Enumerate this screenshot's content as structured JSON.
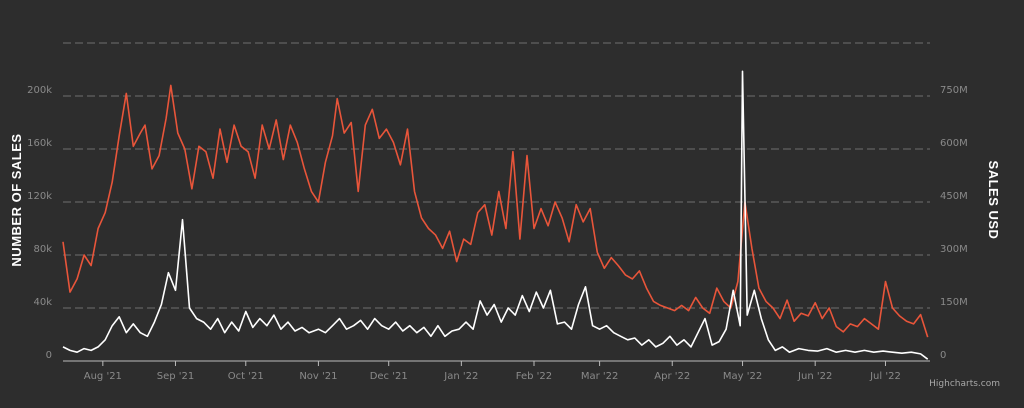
{
  "chart_data": {
    "type": "line",
    "x_start": "2021-07-15",
    "x_end": "2022-07-20",
    "x_tick_labels": [
      {
        "label": "Aug '21",
        "date": "2021-08-01"
      },
      {
        "label": "Sep '21",
        "date": "2021-09-01"
      },
      {
        "label": "Oct '21",
        "date": "2021-10-01"
      },
      {
        "label": "Nov '21",
        "date": "2021-11-01"
      },
      {
        "label": "Dec '21",
        "date": "2021-12-01"
      },
      {
        "label": "Jan '22",
        "date": "2022-01-01"
      },
      {
        "label": "Feb '22",
        "date": "2022-02-01"
      },
      {
        "label": "Mar '22",
        "date": "2022-03-01"
      },
      {
        "label": "Apr '22",
        "date": "2022-04-01"
      },
      {
        "label": "May '22",
        "date": "2022-05-01"
      },
      {
        "label": "Jun '22",
        "date": "2022-06-01"
      },
      {
        "label": "Jul '22",
        "date": "2022-07-01"
      }
    ],
    "y_left": {
      "title": "NUMBER OF SALES",
      "range": [
        0,
        240000
      ],
      "ticks": [
        0,
        40000,
        80000,
        120000,
        160000,
        200000
      ],
      "tick_labels": [
        "0",
        "40k",
        "80k",
        "120k",
        "160k",
        "200k"
      ]
    },
    "y_right": {
      "title": "SALES USD",
      "range": [
        0,
        900000000
      ],
      "ticks": [
        0,
        150000000,
        300000000,
        450000000,
        600000000,
        750000000
      ],
      "tick_labels": [
        "0",
        "150M",
        "300M",
        "450M",
        "600M",
        "750M"
      ]
    },
    "grid": true,
    "legend": "none",
    "credit": "Highcharts.com",
    "series": [
      {
        "axis": "left",
        "color": "#e8553a",
        "points": [
          [
            "2021-07-15",
            90000
          ],
          [
            "2021-07-18",
            52000
          ],
          [
            "2021-07-21",
            62000
          ],
          [
            "2021-07-24",
            80000
          ],
          [
            "2021-07-27",
            72000
          ],
          [
            "2021-07-30",
            100000
          ],
          [
            "2021-08-02",
            112000
          ],
          [
            "2021-08-05",
            135000
          ],
          [
            "2021-08-08",
            170000
          ],
          [
            "2021-08-11",
            202000
          ],
          [
            "2021-08-14",
            162000
          ],
          [
            "2021-08-17",
            172000
          ],
          [
            "2021-08-19",
            178000
          ],
          [
            "2021-08-22",
            145000
          ],
          [
            "2021-08-25",
            155000
          ],
          [
            "2021-08-28",
            183000
          ],
          [
            "2021-08-30",
            208000
          ],
          [
            "2021-09-02",
            172000
          ],
          [
            "2021-09-05",
            160000
          ],
          [
            "2021-09-08",
            130000
          ],
          [
            "2021-09-11",
            162000
          ],
          [
            "2021-09-14",
            158000
          ],
          [
            "2021-09-17",
            138000
          ],
          [
            "2021-09-20",
            175000
          ],
          [
            "2021-09-23",
            150000
          ],
          [
            "2021-09-26",
            178000
          ],
          [
            "2021-09-29",
            162000
          ],
          [
            "2021-10-02",
            158000
          ],
          [
            "2021-10-05",
            138000
          ],
          [
            "2021-10-08",
            178000
          ],
          [
            "2021-10-11",
            160000
          ],
          [
            "2021-10-14",
            182000
          ],
          [
            "2021-10-17",
            152000
          ],
          [
            "2021-10-20",
            178000
          ],
          [
            "2021-10-23",
            165000
          ],
          [
            "2021-10-26",
            145000
          ],
          [
            "2021-10-29",
            128000
          ],
          [
            "2021-11-01",
            120000
          ],
          [
            "2021-11-04",
            150000
          ],
          [
            "2021-11-07",
            170000
          ],
          [
            "2021-11-09",
            198000
          ],
          [
            "2021-11-12",
            172000
          ],
          [
            "2021-11-15",
            180000
          ],
          [
            "2021-11-18",
            128000
          ],
          [
            "2021-11-21",
            178000
          ],
          [
            "2021-11-24",
            190000
          ],
          [
            "2021-11-27",
            168000
          ],
          [
            "2021-11-30",
            175000
          ],
          [
            "2021-12-03",
            165000
          ],
          [
            "2021-12-06",
            148000
          ],
          [
            "2021-12-09",
            175000
          ],
          [
            "2021-12-12",
            128000
          ],
          [
            "2021-12-15",
            108000
          ],
          [
            "2021-12-18",
            100000
          ],
          [
            "2021-12-21",
            95000
          ],
          [
            "2021-12-24",
            85000
          ],
          [
            "2021-12-27",
            98000
          ],
          [
            "2021-12-30",
            75000
          ],
          [
            "2022-01-02",
            92000
          ],
          [
            "2022-01-05",
            88000
          ],
          [
            "2022-01-08",
            112000
          ],
          [
            "2022-01-11",
            118000
          ],
          [
            "2022-01-14",
            95000
          ],
          [
            "2022-01-17",
            128000
          ],
          [
            "2022-01-20",
            100000
          ],
          [
            "2022-01-23",
            158000
          ],
          [
            "2022-01-26",
            92000
          ],
          [
            "2022-01-29",
            155000
          ],
          [
            "2022-02-01",
            100000
          ],
          [
            "2022-02-04",
            115000
          ],
          [
            "2022-02-07",
            102000
          ],
          [
            "2022-02-10",
            120000
          ],
          [
            "2022-02-13",
            108000
          ],
          [
            "2022-02-16",
            90000
          ],
          [
            "2022-02-19",
            118000
          ],
          [
            "2022-02-22",
            105000
          ],
          [
            "2022-02-25",
            115000
          ],
          [
            "2022-02-28",
            82000
          ],
          [
            "2022-03-03",
            70000
          ],
          [
            "2022-03-06",
            78000
          ],
          [
            "2022-03-09",
            72000
          ],
          [
            "2022-03-12",
            65000
          ],
          [
            "2022-03-15",
            62000
          ],
          [
            "2022-03-18",
            68000
          ],
          [
            "2022-03-21",
            55000
          ],
          [
            "2022-03-24",
            45000
          ],
          [
            "2022-03-27",
            42000
          ],
          [
            "2022-03-30",
            40000
          ],
          [
            "2022-04-02",
            38000
          ],
          [
            "2022-04-05",
            42000
          ],
          [
            "2022-04-08",
            38000
          ],
          [
            "2022-04-11",
            48000
          ],
          [
            "2022-04-14",
            40000
          ],
          [
            "2022-04-17",
            36000
          ],
          [
            "2022-04-20",
            55000
          ],
          [
            "2022-04-23",
            45000
          ],
          [
            "2022-04-26",
            40000
          ],
          [
            "2022-04-29",
            60000
          ],
          [
            "2022-05-02",
            120000
          ],
          [
            "2022-05-05",
            85000
          ],
          [
            "2022-05-08",
            55000
          ],
          [
            "2022-05-11",
            45000
          ],
          [
            "2022-05-14",
            40000
          ],
          [
            "2022-05-17",
            32000
          ],
          [
            "2022-05-20",
            46000
          ],
          [
            "2022-05-23",
            30000
          ],
          [
            "2022-05-26",
            36000
          ],
          [
            "2022-05-29",
            34000
          ],
          [
            "2022-06-01",
            44000
          ],
          [
            "2022-06-04",
            32000
          ],
          [
            "2022-06-07",
            40000
          ],
          [
            "2022-06-10",
            26000
          ],
          [
            "2022-06-13",
            22000
          ],
          [
            "2022-06-16",
            28000
          ],
          [
            "2022-06-19",
            26000
          ],
          [
            "2022-06-22",
            32000
          ],
          [
            "2022-06-25",
            28000
          ],
          [
            "2022-06-28",
            24000
          ],
          [
            "2022-07-01",
            60000
          ],
          [
            "2022-07-04",
            40000
          ],
          [
            "2022-07-07",
            34000
          ],
          [
            "2022-07-10",
            30000
          ],
          [
            "2022-07-13",
            28000
          ],
          [
            "2022-07-16",
            35000
          ],
          [
            "2022-07-19",
            18000
          ]
        ]
      },
      {
        "axis": "right",
        "color": "#ffffff",
        "points": [
          [
            "2021-07-15",
            40000000
          ],
          [
            "2021-07-18",
            30000000
          ],
          [
            "2021-07-21",
            25000000
          ],
          [
            "2021-07-24",
            35000000
          ],
          [
            "2021-07-27",
            30000000
          ],
          [
            "2021-07-30",
            40000000
          ],
          [
            "2021-08-02",
            60000000
          ],
          [
            "2021-08-05",
            100000000
          ],
          [
            "2021-08-08",
            125000000
          ],
          [
            "2021-08-11",
            80000000
          ],
          [
            "2021-08-14",
            105000000
          ],
          [
            "2021-08-17",
            80000000
          ],
          [
            "2021-08-20",
            70000000
          ],
          [
            "2021-08-23",
            110000000
          ],
          [
            "2021-08-26",
            160000000
          ],
          [
            "2021-08-29",
            250000000
          ],
          [
            "2021-09-01",
            200000000
          ],
          [
            "2021-09-04",
            400000000
          ],
          [
            "2021-09-07",
            150000000
          ],
          [
            "2021-09-10",
            120000000
          ],
          [
            "2021-09-13",
            110000000
          ],
          [
            "2021-09-16",
            90000000
          ],
          [
            "2021-09-19",
            120000000
          ],
          [
            "2021-09-22",
            80000000
          ],
          [
            "2021-09-25",
            110000000
          ],
          [
            "2021-09-28",
            85000000
          ],
          [
            "2021-10-01",
            140000000
          ],
          [
            "2021-10-04",
            95000000
          ],
          [
            "2021-10-07",
            120000000
          ],
          [
            "2021-10-10",
            100000000
          ],
          [
            "2021-10-13",
            130000000
          ],
          [
            "2021-10-16",
            90000000
          ],
          [
            "2021-10-19",
            110000000
          ],
          [
            "2021-10-22",
            85000000
          ],
          [
            "2021-10-25",
            95000000
          ],
          [
            "2021-10-28",
            80000000
          ],
          [
            "2021-11-01",
            90000000
          ],
          [
            "2021-11-04",
            80000000
          ],
          [
            "2021-11-07",
            100000000
          ],
          [
            "2021-11-10",
            120000000
          ],
          [
            "2021-11-13",
            90000000
          ],
          [
            "2021-11-16",
            100000000
          ],
          [
            "2021-11-19",
            115000000
          ],
          [
            "2021-11-22",
            90000000
          ],
          [
            "2021-11-25",
            120000000
          ],
          [
            "2021-11-28",
            100000000
          ],
          [
            "2021-12-01",
            90000000
          ],
          [
            "2021-12-04",
            110000000
          ],
          [
            "2021-12-07",
            85000000
          ],
          [
            "2021-12-10",
            100000000
          ],
          [
            "2021-12-13",
            80000000
          ],
          [
            "2021-12-16",
            95000000
          ],
          [
            "2021-12-19",
            70000000
          ],
          [
            "2021-12-22",
            100000000
          ],
          [
            "2021-12-25",
            70000000
          ],
          [
            "2021-12-28",
            85000000
          ],
          [
            "2021-12-31",
            90000000
          ],
          [
            "2022-01-03",
            110000000
          ],
          [
            "2022-01-06",
            90000000
          ],
          [
            "2022-01-09",
            170000000
          ],
          [
            "2022-01-12",
            130000000
          ],
          [
            "2022-01-15",
            160000000
          ],
          [
            "2022-01-18",
            110000000
          ],
          [
            "2022-01-21",
            150000000
          ],
          [
            "2022-01-24",
            130000000
          ],
          [
            "2022-01-27",
            185000000
          ],
          [
            "2022-01-30",
            140000000
          ],
          [
            "2022-02-02",
            195000000
          ],
          [
            "2022-02-05",
            150000000
          ],
          [
            "2022-02-08",
            200000000
          ],
          [
            "2022-02-11",
            105000000
          ],
          [
            "2022-02-14",
            110000000
          ],
          [
            "2022-02-17",
            90000000
          ],
          [
            "2022-02-20",
            160000000
          ],
          [
            "2022-02-23",
            210000000
          ],
          [
            "2022-02-26",
            100000000
          ],
          [
            "2022-03-01",
            90000000
          ],
          [
            "2022-03-04",
            100000000
          ],
          [
            "2022-03-07",
            80000000
          ],
          [
            "2022-03-10",
            70000000
          ],
          [
            "2022-03-13",
            60000000
          ],
          [
            "2022-03-16",
            65000000
          ],
          [
            "2022-03-19",
            45000000
          ],
          [
            "2022-03-22",
            60000000
          ],
          [
            "2022-03-25",
            40000000
          ],
          [
            "2022-03-28",
            50000000
          ],
          [
            "2022-03-31",
            70000000
          ],
          [
            "2022-04-03",
            45000000
          ],
          [
            "2022-04-06",
            60000000
          ],
          [
            "2022-04-09",
            40000000
          ],
          [
            "2022-04-12",
            80000000
          ],
          [
            "2022-04-15",
            120000000
          ],
          [
            "2022-04-18",
            45000000
          ],
          [
            "2022-04-21",
            55000000
          ],
          [
            "2022-04-24",
            90000000
          ],
          [
            "2022-04-27",
            200000000
          ],
          [
            "2022-04-30",
            100000000
          ],
          [
            "2022-05-01",
            820000000
          ],
          [
            "2022-05-03",
            130000000
          ],
          [
            "2022-05-06",
            200000000
          ],
          [
            "2022-05-09",
            120000000
          ],
          [
            "2022-05-12",
            60000000
          ],
          [
            "2022-05-15",
            30000000
          ],
          [
            "2022-05-18",
            40000000
          ],
          [
            "2022-05-21",
            25000000
          ],
          [
            "2022-05-25",
            35000000
          ],
          [
            "2022-05-29",
            30000000
          ],
          [
            "2022-06-02",
            28000000
          ],
          [
            "2022-06-06",
            35000000
          ],
          [
            "2022-06-10",
            25000000
          ],
          [
            "2022-06-14",
            30000000
          ],
          [
            "2022-06-18",
            25000000
          ],
          [
            "2022-06-22",
            30000000
          ],
          [
            "2022-06-26",
            25000000
          ],
          [
            "2022-06-30",
            28000000
          ],
          [
            "2022-07-04",
            25000000
          ],
          [
            "2022-07-08",
            22000000
          ],
          [
            "2022-07-12",
            25000000
          ],
          [
            "2022-07-16",
            20000000
          ],
          [
            "2022-07-19",
            5000000
          ]
        ]
      }
    ]
  }
}
